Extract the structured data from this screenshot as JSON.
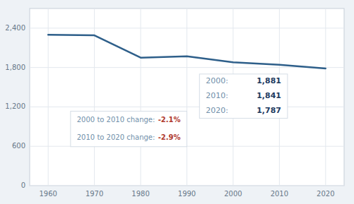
{
  "chart_data": {
    "type": "line",
    "x": [
      1960,
      1970,
      1980,
      1990,
      2000,
      2010,
      2020
    ],
    "values": [
      2300,
      2290,
      1950,
      1970,
      1881,
      1841,
      1787
    ],
    "color": "#2e5f8a",
    "xlim": [
      1956,
      2024
    ],
    "xticks": [
      1960,
      1970,
      1980,
      1990,
      2000,
      2010,
      2020
    ],
    "ylim": [
      0,
      2700
    ],
    "yticks": [
      0,
      600,
      {
        "value": 1200,
        "label": "1,200"
      },
      {
        "value": 1800,
        "label": "1,800"
      },
      {
        "value": 2400,
        "label": "2,400"
      }
    ],
    "grid": true,
    "annotations": [
      [
        {
          "text": "2000 to 2010 change:",
          "value": -2.1,
          "label": "-2.1%"
        },
        {
          "text": "2010 to 2020 change:",
          "value": -2.9,
          "label": "-2.9%"
        }
      ],
      [
        {
          "text": "2000:",
          "value": 1881,
          "label": "1,881"
        },
        {
          "text": "2010:",
          "value": 1841,
          "label": "1,841"
        },
        {
          "text": "2020:",
          "value": 1787,
          "label": "1,787"
        }
      ]
    ]
  }
}
